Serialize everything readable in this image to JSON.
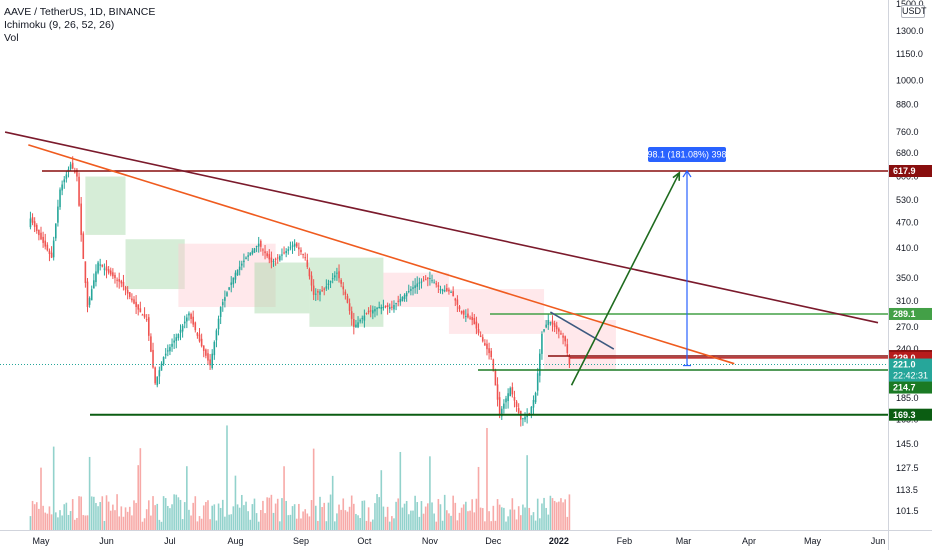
{
  "header": {
    "symbol": "AAVE / TetherUS, 1D, BINANCE",
    "indicator": "Ichimoku (9, 26, 52, 26)",
    "volume": "Vol",
    "currency": "USDT"
  },
  "chart_data": {
    "type": "candlestick",
    "title": "AAVE / TetherUS, 1D, BINANCE",
    "yscale": "log",
    "ylim": [
      88,
      1620
    ],
    "y_ticks": [
      101.5,
      113.5,
      127.5,
      145.0,
      165.0,
      185.0,
      210.0,
      240.0,
      270.0,
      310.0,
      350.0,
      410.0,
      470.0,
      530.0,
      600.0,
      680.0,
      760.0,
      880.0,
      1000.0,
      1150.0,
      1300.0,
      1500.0
    ],
    "x_ticks": [
      {
        "label": "May",
        "date": "2021-05-01"
      },
      {
        "label": "Jun",
        "date": "2021-06-01"
      },
      {
        "label": "Jul",
        "date": "2021-07-01"
      },
      {
        "label": "Aug",
        "date": "2021-08-01"
      },
      {
        "label": "Sep",
        "date": "2021-09-01"
      },
      {
        "label": "Oct",
        "date": "2021-10-01"
      },
      {
        "label": "Nov",
        "date": "2021-11-01"
      },
      {
        "label": "Dec",
        "date": "2021-12-01"
      },
      {
        "label": "2022",
        "date": "2022-01-01"
      },
      {
        "label": "Feb",
        "date": "2022-02-01"
      },
      {
        "label": "Mar",
        "date": "2022-03-01"
      },
      {
        "label": "Apr",
        "date": "2022-04-01"
      },
      {
        "label": "May",
        "date": "2022-05-01"
      },
      {
        "label": "Jun",
        "date": "2022-06-01"
      }
    ],
    "price_path": [
      [
        "2021-04-26",
        480
      ],
      [
        "2021-05-01",
        430
      ],
      [
        "2021-05-06",
        390
      ],
      [
        "2021-05-10",
        560
      ],
      [
        "2021-05-15",
        640
      ],
      [
        "2021-05-18",
        600
      ],
      [
        "2021-05-20",
        440
      ],
      [
        "2021-05-23",
        300
      ],
      [
        "2021-05-28",
        380
      ],
      [
        "2021-06-02",
        360
      ],
      [
        "2021-06-08",
        340
      ],
      [
        "2021-06-15",
        300
      ],
      [
        "2021-06-20",
        280
      ],
      [
        "2021-06-24",
        200
      ],
      [
        "2021-06-28",
        230
      ],
      [
        "2021-07-05",
        260
      ],
      [
        "2021-07-10",
        290
      ],
      [
        "2021-07-15",
        250
      ],
      [
        "2021-07-20",
        220
      ],
      [
        "2021-07-25",
        300
      ],
      [
        "2021-08-01",
        360
      ],
      [
        "2021-08-06",
        390
      ],
      [
        "2021-08-12",
        420
      ],
      [
        "2021-08-18",
        380
      ],
      [
        "2021-08-24",
        400
      ],
      [
        "2021-08-29",
        420
      ],
      [
        "2021-09-03",
        390
      ],
      [
        "2021-09-07",
        320
      ],
      [
        "2021-09-12",
        330
      ],
      [
        "2021-09-18",
        360
      ],
      [
        "2021-09-22",
        320
      ],
      [
        "2021-09-26",
        270
      ],
      [
        "2021-10-02",
        290
      ],
      [
        "2021-10-08",
        300
      ],
      [
        "2021-10-14",
        300
      ],
      [
        "2021-10-20",
        320
      ],
      [
        "2021-10-26",
        340
      ],
      [
        "2021-11-01",
        350
      ],
      [
        "2021-11-06",
        330
      ],
      [
        "2021-11-11",
        325
      ],
      [
        "2021-11-16",
        290
      ],
      [
        "2021-11-21",
        280
      ],
      [
        "2021-11-26",
        250
      ],
      [
        "2021-11-30",
        230
      ],
      [
        "2021-12-04",
        170
      ],
      [
        "2021-12-09",
        195
      ],
      [
        "2021-12-14",
        165
      ],
      [
        "2021-12-18",
        170
      ],
      [
        "2021-12-21",
        190
      ],
      [
        "2021-12-24",
        260
      ],
      [
        "2021-12-27",
        280
      ],
      [
        "2021-12-30",
        270
      ],
      [
        "2022-01-02",
        260
      ],
      [
        "2022-01-04",
        250
      ],
      [
        "2022-01-06",
        221
      ]
    ],
    "last_close": 221.0,
    "countdown": "22:42:31",
    "horizontal_levels": [
      {
        "price": 617.9,
        "label": "617.9",
        "color": "#880e0e"
      },
      {
        "price": 289.1,
        "label": "289.1",
        "color": "#43a047"
      },
      {
        "price": 231.2,
        "label": "231.2",
        "color": "#880e0e"
      },
      {
        "price": 229.0,
        "label": "229.0",
        "color": "#b71c1c"
      },
      {
        "price": 214.7,
        "label": "214.7",
        "color": "#1b7a24"
      },
      {
        "price": 169.3,
        "label": "169.3",
        "color": "#0b5d12"
      }
    ],
    "trendlines": [
      {
        "from": [
          "2021-04-14",
          760
        ],
        "to": [
          "2022-06-01",
          276
        ],
        "color": "#7b1a2c"
      },
      {
        "from": [
          "2021-04-25",
          710
        ],
        "to": [
          "2022-03-25",
          222
        ],
        "color": "#ef5b1f"
      },
      {
        "from": [
          "2021-12-28",
          292
        ],
        "to": [
          "2022-01-27",
          240
        ],
        "color": "#3d5a80"
      }
    ],
    "projection": {
      "from": [
        "2022-01-07",
        198
      ],
      "to": [
        "2022-02-27",
        612
      ],
      "measure_text": "398.1 (181.08%) 3981",
      "measure_from": 219.8,
      "measure_to": 617.9,
      "color": "#1e6b1e",
      "measure_color": "#2962ff"
    },
    "colors": {
      "up": "#26a69a",
      "down": "#ef5350",
      "cloud_bull": "#a5d6a7",
      "cloud_bear": "#ffcdd2"
    }
  }
}
